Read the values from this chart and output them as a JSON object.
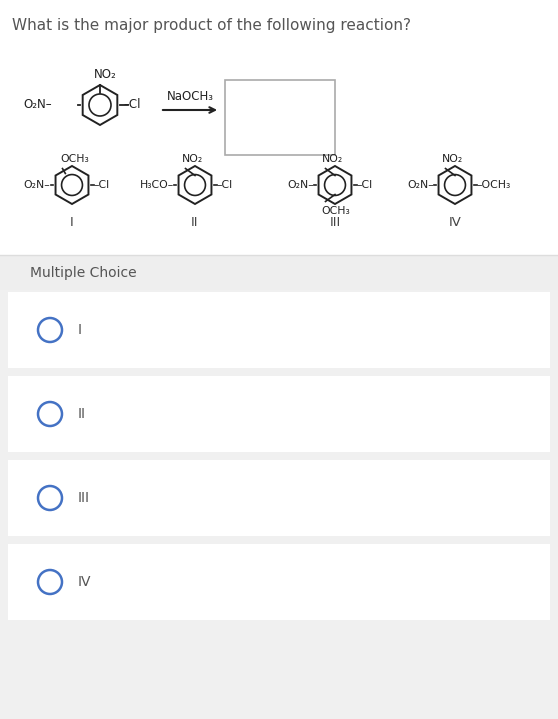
{
  "title": "What is the major product of the following reaction?",
  "title_color": "#555555",
  "title_fontsize": 11,
  "bg_top": "#ffffff",
  "bg_bottom": "#f0f0f0",
  "mc_label": "Multiple Choice",
  "mc_label_color": "#555555",
  "mc_fontsize": 10,
  "choices": [
    "I",
    "II",
    "III",
    "IV"
  ],
  "choice_color": "#555555",
  "choice_fontsize": 10,
  "circle_color": "#4472c4",
  "reaction_arrow_label": "NaOCH₃",
  "reagent_box": true,
  "compound_labels": [
    "I",
    "II",
    "III",
    "IV"
  ],
  "compound_label_fontsize": 10
}
